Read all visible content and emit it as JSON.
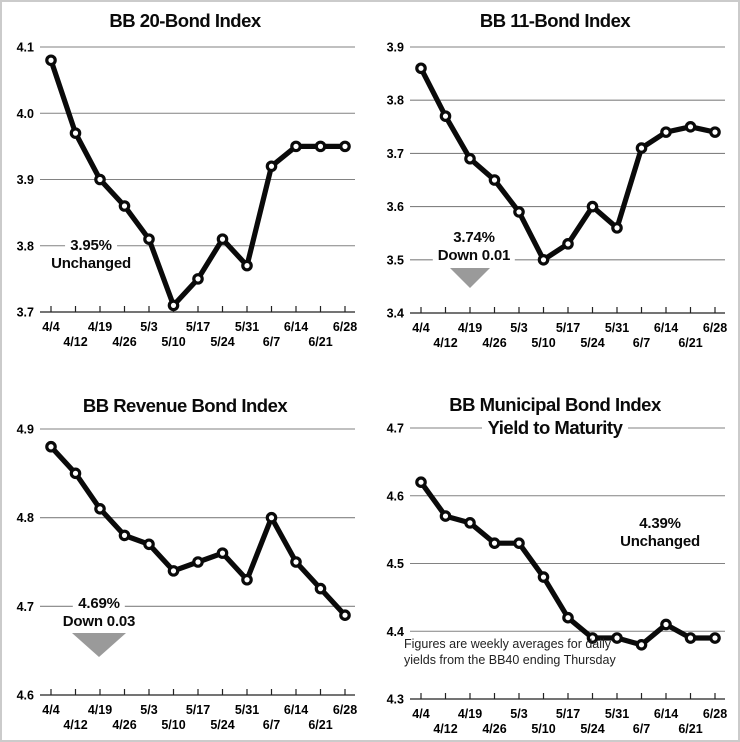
{
  "meta": {
    "background": "#ffffff",
    "frame_border_color": "#cbcbcb",
    "series_color": "#0a0a0a",
    "marker_fill": "#ffffff",
    "gridline_color": "#828282",
    "arrow_color": "#9a9a9a"
  },
  "chart_data": [
    {
      "type": "line",
      "title": "BB 20-Bond Index",
      "title_lines": [
        "BB 20-Bond Index"
      ],
      "x": [
        "4/4",
        "4/12",
        "4/19",
        "4/26",
        "5/3",
        "5/10",
        "5/17",
        "5/24",
        "5/31",
        "6/7",
        "6/14",
        "6/21",
        "6/28"
      ],
      "values": [
        4.08,
        3.97,
        3.9,
        3.86,
        3.81,
        3.71,
        3.75,
        3.81,
        3.77,
        3.92,
        3.95,
        3.95,
        3.95
      ],
      "ylim": [
        3.7,
        4.1
      ],
      "yticks": [
        4.1,
        4.0,
        3.9,
        3.8,
        3.7
      ],
      "ytick_labels": [
        "4.1",
        "4.0",
        "3.9",
        "3.8",
        "3.7"
      ],
      "grid": true,
      "legend": "none",
      "annotation": {
        "value_label": "3.95%",
        "change_label": "Unchanged",
        "has_down_arrow": false
      }
    },
    {
      "type": "line",
      "title": "BB 11-Bond Index",
      "title_lines": [
        "BB 11-Bond Index"
      ],
      "x": [
        "4/4",
        "4/12",
        "4/19",
        "4/26",
        "5/3",
        "5/10",
        "5/17",
        "5/24",
        "5/31",
        "6/7",
        "6/14",
        "6/21",
        "6/28"
      ],
      "values": [
        3.86,
        3.77,
        3.69,
        3.65,
        3.59,
        3.5,
        3.53,
        3.6,
        3.56,
        3.71,
        3.74,
        3.75,
        3.74
      ],
      "ylim": [
        3.4,
        3.9
      ],
      "yticks": [
        3.9,
        3.8,
        3.7,
        3.6,
        3.5,
        3.4
      ],
      "ytick_labels": [
        "3.9",
        "3.8",
        "3.7",
        "3.6",
        "3.5",
        "3.4"
      ],
      "grid": true,
      "legend": "none",
      "annotation": {
        "value_label": "3.74%",
        "change_label": "Down 0.01",
        "has_down_arrow": true
      }
    },
    {
      "type": "line",
      "title": "BB Revenue Bond Index",
      "title_lines": [
        "BB Revenue Bond Index"
      ],
      "x": [
        "4/4",
        "4/12",
        "4/19",
        "4/26",
        "5/3",
        "5/10",
        "5/17",
        "5/24",
        "5/31",
        "6/7",
        "6/14",
        "6/21",
        "6/28"
      ],
      "values": [
        4.88,
        4.85,
        4.81,
        4.78,
        4.77,
        4.74,
        4.75,
        4.76,
        4.73,
        4.8,
        4.75,
        4.72,
        4.69
      ],
      "ylim": [
        4.6,
        4.9
      ],
      "yticks": [
        4.9,
        4.8,
        4.7,
        4.6
      ],
      "ytick_labels": [
        "4.9",
        "4.8",
        "4.7",
        "4.6"
      ],
      "grid": true,
      "legend": "none",
      "annotation": {
        "value_label": "4.69%",
        "change_label": "Down 0.03",
        "has_down_arrow": true
      }
    },
    {
      "type": "line",
      "title": "BB Municipal Bond Index Yield to Maturity",
      "title_lines": [
        "BB Municipal Bond Index",
        "Yield to Maturity"
      ],
      "x": [
        "4/4",
        "4/12",
        "4/19",
        "4/26",
        "5/3",
        "5/10",
        "5/17",
        "5/24",
        "5/31",
        "6/7",
        "6/14",
        "6/21",
        "6/28"
      ],
      "values": [
        4.62,
        4.57,
        4.56,
        4.53,
        4.53,
        4.48,
        4.42,
        4.39,
        4.39,
        4.38,
        4.41,
        4.39,
        4.39
      ],
      "ylim": [
        4.3,
        4.7
      ],
      "yticks": [
        4.7,
        4.6,
        4.5,
        4.4,
        4.3
      ],
      "ytick_labels": [
        "4.7",
        "4.6",
        "4.5",
        "4.4",
        "4.3"
      ],
      "grid": true,
      "legend": "none",
      "annotation": {
        "value_label": "4.39%",
        "change_label": "Unchanged",
        "has_down_arrow": false
      },
      "footnote_lines": [
        "Figures are weekly averages for daily",
        "yields from the BB40 ending Thursday"
      ]
    }
  ]
}
